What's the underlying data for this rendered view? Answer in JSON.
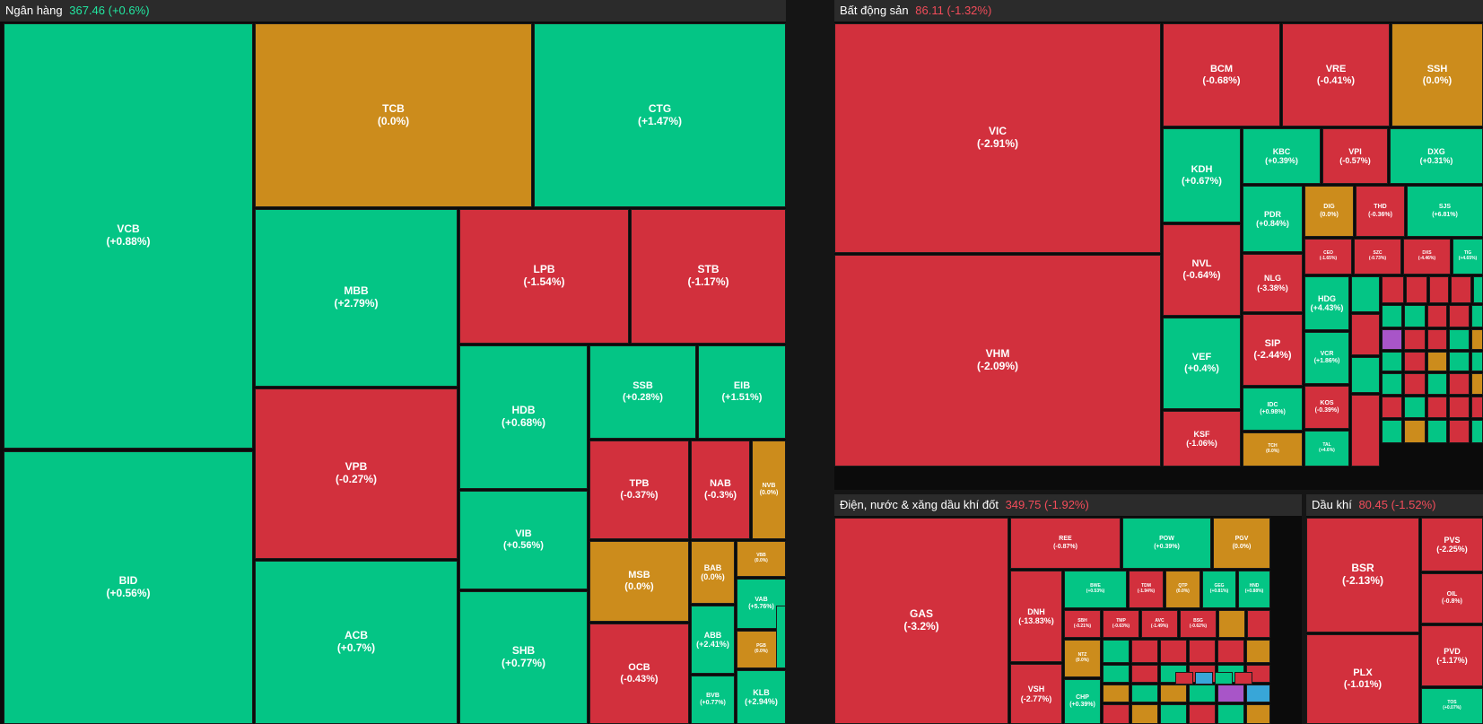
{
  "colors": {
    "up": "#04c585",
    "down": "#d2303d",
    "flat": "#cc8c1c",
    "ceiling": "#a855c8",
    "floor": "#38a6d8",
    "up_text": "#22e6a0",
    "down_text": "#f24c5a"
  },
  "sectors": [
    {
      "id": "ngan-hang",
      "name": "Ngân hàng",
      "index": "367.46",
      "change": "(+0.6%)",
      "trend": "up",
      "tiles": [
        {
          "ticker": "VCB",
          "change": "(+0.88%)",
          "trend": "up"
        },
        {
          "ticker": "BID",
          "change": "(+0.56%)",
          "trend": "up"
        },
        {
          "ticker": "TCB",
          "change": "(0.0%)",
          "trend": "flat"
        },
        {
          "ticker": "CTG",
          "change": "(+1.47%)",
          "trend": "up"
        },
        {
          "ticker": "MBB",
          "change": "(+2.79%)",
          "trend": "up"
        },
        {
          "ticker": "VPB",
          "change": "(-0.27%)",
          "trend": "down"
        },
        {
          "ticker": "ACB",
          "change": "(+0.7%)",
          "trend": "up"
        },
        {
          "ticker": "LPB",
          "change": "(-1.54%)",
          "trend": "down"
        },
        {
          "ticker": "STB",
          "change": "(-1.17%)",
          "trend": "down"
        },
        {
          "ticker": "HDB",
          "change": "(+0.68%)",
          "trend": "up"
        },
        {
          "ticker": "SSB",
          "change": "(+0.28%)",
          "trend": "up"
        },
        {
          "ticker": "EIB",
          "change": "(+1.51%)",
          "trend": "up"
        },
        {
          "ticker": "VIB",
          "change": "(+0.56%)",
          "trend": "up"
        },
        {
          "ticker": "SHB",
          "change": "(+0.77%)",
          "trend": "up"
        },
        {
          "ticker": "TPB",
          "change": "(-0.37%)",
          "trend": "down"
        },
        {
          "ticker": "NAB",
          "change": "(-0.3%)",
          "trend": "down"
        },
        {
          "ticker": "NVB",
          "change": "(0.0%)",
          "trend": "flat"
        },
        {
          "ticker": "MSB",
          "change": "(0.0%)",
          "trend": "flat"
        },
        {
          "ticker": "OCB",
          "change": "(-0.43%)",
          "trend": "down"
        },
        {
          "ticker": "BAB",
          "change": "(0.0%)",
          "trend": "flat"
        },
        {
          "ticker": "VBB",
          "change": "(0.0%)",
          "trend": "flat"
        },
        {
          "ticker": "VAB",
          "change": "(+5.76%)",
          "trend": "up"
        },
        {
          "ticker": "ABB",
          "change": "(+2.41%)",
          "trend": "up"
        },
        {
          "ticker": "PGB",
          "change": "(0.0%)",
          "trend": "flat"
        },
        {
          "ticker": "BVB",
          "change": "(+0.77%)",
          "trend": "up"
        },
        {
          "ticker": "KLB",
          "change": "(+2.94%)",
          "trend": "up"
        },
        {
          "ticker": "",
          "change": "",
          "trend": "up"
        }
      ]
    },
    {
      "id": "bat-dong-san",
      "name": "Bất động sản",
      "index": "86.11",
      "change": "(-1.32%)",
      "trend": "down",
      "tiles": [
        {
          "ticker": "VIC",
          "change": "(-2.91%)",
          "trend": "down"
        },
        {
          "ticker": "VHM",
          "change": "(-2.09%)",
          "trend": "down"
        },
        {
          "ticker": "BCM",
          "change": "(-0.68%)",
          "trend": "down"
        },
        {
          "ticker": "VRE",
          "change": "(-0.41%)",
          "trend": "down"
        },
        {
          "ticker": "SSH",
          "change": "(0.0%)",
          "trend": "flat"
        },
        {
          "ticker": "KDH",
          "change": "(+0.67%)",
          "trend": "up"
        },
        {
          "ticker": "KBC",
          "change": "(+0.39%)",
          "trend": "up"
        },
        {
          "ticker": "VPI",
          "change": "(-0.57%)",
          "trend": "down"
        },
        {
          "ticker": "DXG",
          "change": "(+0.31%)",
          "trend": "up"
        },
        {
          "ticker": "PDR",
          "change": "(+0.84%)",
          "trend": "up"
        },
        {
          "ticker": "DIG",
          "change": "(0.0%)",
          "trend": "flat"
        },
        {
          "ticker": "THD",
          "change": "(-0.36%)",
          "trend": "down"
        },
        {
          "ticker": "SJS",
          "change": "(+6.81%)",
          "trend": "up"
        },
        {
          "ticker": "NVL",
          "change": "(-0.64%)",
          "trend": "down"
        },
        {
          "ticker": "NLG",
          "change": "(-3.38%)",
          "trend": "down"
        },
        {
          "ticker": "CEO",
          "change": "(-1.65%)",
          "trend": "down"
        },
        {
          "ticker": "SZC",
          "change": "(-0.73%)",
          "trend": "down"
        },
        {
          "ticker": "DXS",
          "change": "(-4.46%)",
          "trend": "down"
        },
        {
          "ticker": "TIG",
          "change": "(+4.65%)",
          "trend": "up"
        },
        {
          "ticker": "VEF",
          "change": "(+0.4%)",
          "trend": "up"
        },
        {
          "ticker": "SIP",
          "change": "(-2.44%)",
          "trend": "down"
        },
        {
          "ticker": "HDG",
          "change": "(+4.43%)",
          "trend": "up"
        },
        {
          "ticker": "VCR",
          "change": "(+1.86%)",
          "trend": "up"
        },
        {
          "ticker": "IDC",
          "change": "(+0.98%)",
          "trend": "up"
        },
        {
          "ticker": "KOS",
          "change": "(-0.39%)",
          "trend": "down"
        },
        {
          "ticker": "KSF",
          "change": "(-1.06%)",
          "trend": "down"
        },
        {
          "ticker": "TCH",
          "change": "(0.0%)",
          "trend": "flat"
        },
        {
          "ticker": "TAL",
          "change": "(+4.6%)",
          "trend": "up"
        },
        {
          "ticker": "",
          "change": "",
          "trend": "up"
        },
        {
          "ticker": "",
          "change": "",
          "trend": "down"
        },
        {
          "ticker": "",
          "change": "",
          "trend": "up"
        },
        {
          "ticker": "",
          "change": "",
          "trend": "down"
        },
        {
          "ticker": "",
          "change": "",
          "trend": "down"
        },
        {
          "ticker": "",
          "change": "",
          "trend": "down"
        },
        {
          "ticker": "",
          "change": "",
          "trend": "down"
        },
        {
          "ticker": "",
          "change": "",
          "trend": "down"
        },
        {
          "ticker": "",
          "change": "",
          "trend": "up"
        },
        {
          "ticker": "",
          "change": "",
          "trend": "up"
        },
        {
          "ticker": "",
          "change": "",
          "trend": "up"
        },
        {
          "ticker": "",
          "change": "",
          "trend": "down"
        },
        {
          "ticker": "",
          "change": "",
          "trend": "down"
        },
        {
          "ticker": "",
          "change": "",
          "trend": "up"
        },
        {
          "ticker": "",
          "change": "",
          "trend": "ceiling"
        },
        {
          "ticker": "",
          "change": "",
          "trend": "down"
        },
        {
          "ticker": "",
          "change": "",
          "trend": "down"
        },
        {
          "ticker": "",
          "change": "",
          "trend": "up"
        },
        {
          "ticker": "",
          "change": "",
          "trend": "flat"
        },
        {
          "ticker": "",
          "change": "",
          "trend": "up"
        },
        {
          "ticker": "",
          "change": "",
          "trend": "down"
        },
        {
          "ticker": "",
          "change": "",
          "trend": "flat"
        },
        {
          "ticker": "",
          "change": "",
          "trend": "up"
        },
        {
          "ticker": "",
          "change": "",
          "trend": "up"
        },
        {
          "ticker": "",
          "change": "",
          "trend": "up"
        },
        {
          "ticker": "",
          "change": "",
          "trend": "down"
        },
        {
          "ticker": "",
          "change": "",
          "trend": "up"
        },
        {
          "ticker": "",
          "change": "",
          "trend": "down"
        },
        {
          "ticker": "",
          "change": "",
          "trend": "flat"
        },
        {
          "ticker": "",
          "change": "",
          "trend": "down"
        },
        {
          "ticker": "",
          "change": "",
          "trend": "up"
        },
        {
          "ticker": "",
          "change": "",
          "trend": "down"
        },
        {
          "ticker": "",
          "change": "",
          "trend": "down"
        },
        {
          "ticker": "",
          "change": "",
          "trend": "down"
        },
        {
          "ticker": "",
          "change": "",
          "trend": "up"
        },
        {
          "ticker": "",
          "change": "",
          "trend": "flat"
        },
        {
          "ticker": "",
          "change": "",
          "trend": "up"
        },
        {
          "ticker": "",
          "change": "",
          "trend": "down"
        },
        {
          "ticker": "",
          "change": "",
          "trend": "up"
        },
        {
          "ticker": "",
          "change": "",
          "trend": "ceiling"
        }
      ]
    },
    {
      "id": "dien-nuoc-xang-dau-khi-dot",
      "name": "Điện, nước & xăng dầu khí đốt",
      "index": "349.75",
      "change": "(-1.92%)",
      "trend": "down",
      "tiles": [
        {
          "ticker": "GAS",
          "change": "(-3.2%)",
          "trend": "down"
        },
        {
          "ticker": "REE",
          "change": "(-0.87%)",
          "trend": "down"
        },
        {
          "ticker": "POW",
          "change": "(+0.39%)",
          "trend": "up"
        },
        {
          "ticker": "PGV",
          "change": "(0.0%)",
          "trend": "flat"
        },
        {
          "ticker": "DNH",
          "change": "(-13.83%)",
          "trend": "down"
        },
        {
          "ticker": "VSH",
          "change": "(-2.77%)",
          "trend": "down"
        },
        {
          "ticker": "BWE",
          "change": "(+0.53%)",
          "trend": "up"
        },
        {
          "ticker": "TDM",
          "change": "(-1.94%)",
          "trend": "down"
        },
        {
          "ticker": "QTP",
          "change": "(0.0%)",
          "trend": "flat"
        },
        {
          "ticker": "GEG",
          "change": "(+0.81%)",
          "trend": "up"
        },
        {
          "ticker": "HND",
          "change": "(+0.88%)",
          "trend": "up"
        },
        {
          "ticker": "SBH",
          "change": "(-0.21%)",
          "trend": "down"
        },
        {
          "ticker": "TMP",
          "change": "(-0.63%)",
          "trend": "down"
        },
        {
          "ticker": "AVC",
          "change": "(-1.49%)",
          "trend": "down"
        },
        {
          "ticker": "BSG",
          "change": "(-0.62%)",
          "trend": "down"
        },
        {
          "ticker": "",
          "change": "",
          "trend": "flat"
        },
        {
          "ticker": "",
          "change": "",
          "trend": "down"
        },
        {
          "ticker": "NTZ",
          "change": "(0.0%)",
          "trend": "flat"
        },
        {
          "ticker": "CHP",
          "change": "(+0.39%)",
          "trend": "up"
        },
        {
          "ticker": "",
          "change": "",
          "trend": "up"
        },
        {
          "ticker": "",
          "change": "",
          "trend": "down"
        },
        {
          "ticker": "",
          "change": "",
          "trend": "down"
        },
        {
          "ticker": "",
          "change": "",
          "trend": "down"
        },
        {
          "ticker": "",
          "change": "",
          "trend": "down"
        },
        {
          "ticker": "",
          "change": "",
          "trend": "flat"
        },
        {
          "ticker": "",
          "change": "",
          "trend": "up"
        },
        {
          "ticker": "",
          "change": "",
          "trend": "down"
        },
        {
          "ticker": "",
          "change": "",
          "trend": "up"
        },
        {
          "ticker": "",
          "change": "",
          "trend": "down"
        },
        {
          "ticker": "",
          "change": "",
          "trend": "up"
        },
        {
          "ticker": "",
          "change": "",
          "trend": "down"
        },
        {
          "ticker": "",
          "change": "",
          "trend": "flat"
        },
        {
          "ticker": "",
          "change": "",
          "trend": "up"
        },
        {
          "ticker": "",
          "change": "",
          "trend": "flat"
        },
        {
          "ticker": "",
          "change": "",
          "trend": "up"
        },
        {
          "ticker": "",
          "change": "",
          "trend": "ceiling"
        },
        {
          "ticker": "",
          "change": "",
          "trend": "floor"
        },
        {
          "ticker": "",
          "change": "",
          "trend": "down"
        },
        {
          "ticker": "",
          "change": "",
          "trend": "flat"
        },
        {
          "ticker": "",
          "change": "",
          "trend": "up"
        },
        {
          "ticker": "",
          "change": "",
          "trend": "down"
        },
        {
          "ticker": "",
          "change": "",
          "trend": "up"
        },
        {
          "ticker": "",
          "change": "",
          "trend": "flat"
        },
        {
          "ticker": "",
          "change": "",
          "trend": "down"
        },
        {
          "ticker": "",
          "change": "",
          "trend": "floor"
        },
        {
          "ticker": "",
          "change": "",
          "trend": "up"
        },
        {
          "ticker": "",
          "change": "",
          "trend": "down"
        }
      ]
    },
    {
      "id": "dau-khi",
      "name": "Dầu khí",
      "index": "80.45",
      "change": "(-1.52%)",
      "trend": "down",
      "tiles": [
        {
          "ticker": "BSR",
          "change": "(-2.13%)",
          "trend": "down"
        },
        {
          "ticker": "PLX",
          "change": "(-1.01%)",
          "trend": "down"
        },
        {
          "ticker": "PVS",
          "change": "(-2.25%)",
          "trend": "down"
        },
        {
          "ticker": "OIL",
          "change": "(-0.8%)",
          "trend": "down"
        },
        {
          "ticker": "PVD",
          "change": "(-1.17%)",
          "trend": "down"
        },
        {
          "ticker": "TOS",
          "change": "(+0.07%)",
          "trend": "up"
        }
      ]
    }
  ]
}
